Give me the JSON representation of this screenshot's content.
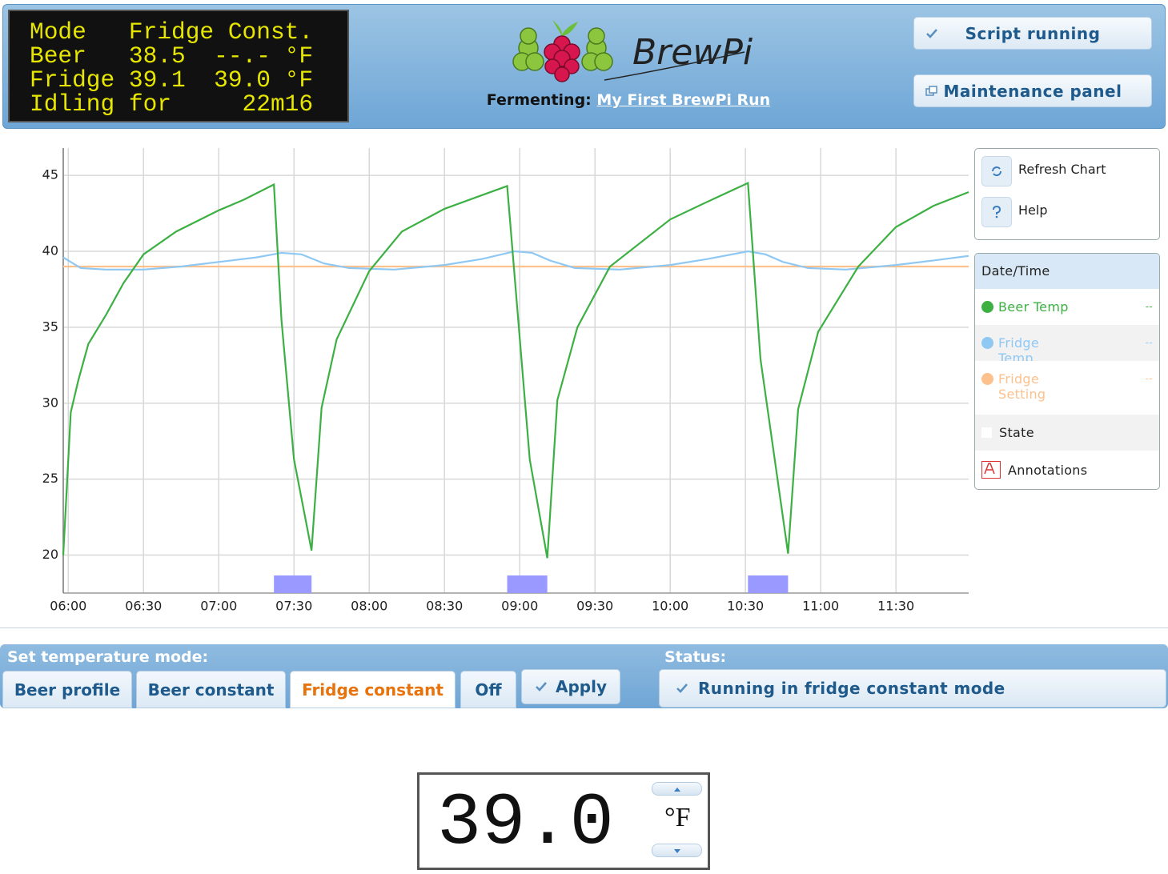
{
  "header": {
    "lcd": [
      "Mode   Fridge Const.",
      "Beer   38.5  --.- °F",
      "Fridge 39.1  39.0 °F",
      "Idling for     22m16"
    ],
    "logo_text": "BrewPi",
    "fermenting_label": "Fermenting:",
    "fermenting_name": "My First BrewPi Run",
    "buttons": [
      "Script running",
      "Maintenance panel"
    ]
  },
  "chart_data": {
    "type": "line",
    "xlim": [
      "05:58",
      "11:59"
    ],
    "xticks": [
      "06:00",
      "06:30",
      "07:00",
      "07:30",
      "08:00",
      "08:30",
      "09:00",
      "09:30",
      "10:00",
      "10:30",
      "11:00",
      "11:30"
    ],
    "ylim": [
      17.5,
      46.8
    ],
    "yticks": [
      20,
      25,
      30,
      35,
      40,
      45
    ],
    "grid": true,
    "series": [
      {
        "name": "Beer Temp",
        "color": "#3cb043",
        "current": "--",
        "x": [
          "05:58",
          "06:01",
          "06:04",
          "06:08",
          "06:15",
          "06:22",
          "06:30",
          "06:43",
          "07:00",
          "07:10",
          "07:22",
          "07:25",
          "07:30",
          "07:37",
          "07:41",
          "07:47",
          "08:00",
          "08:13",
          "08:30",
          "08:45",
          "08:55",
          "09:04",
          "09:11",
          "09:15",
          "09:23",
          "09:36",
          "10:00",
          "10:14",
          "10:31",
          "10:36",
          "10:47",
          "10:51",
          "10:59",
          "11:15",
          "11:30",
          "11:45",
          "11:59"
        ],
        "values": [
          20.0,
          29.4,
          31.5,
          33.9,
          35.8,
          37.9,
          39.8,
          41.3,
          42.7,
          43.4,
          44.4,
          35.5,
          26.3,
          20.3,
          29.7,
          34.2,
          38.7,
          41.3,
          42.8,
          43.7,
          44.3,
          26.3,
          19.8,
          30.2,
          35.0,
          39.0,
          42.1,
          43.2,
          44.5,
          32.9,
          20.1,
          29.6,
          34.7,
          39.0,
          41.6,
          43.0,
          43.9
        ]
      },
      {
        "name": "Fridge Temp",
        "color": "#8ec8f3",
        "current": "--",
        "x": [
          "05:58",
          "06:05",
          "06:15",
          "06:30",
          "06:45",
          "07:00",
          "07:15",
          "07:25",
          "07:33",
          "07:42",
          "07:52",
          "08:10",
          "08:30",
          "08:45",
          "08:58",
          "09:05",
          "09:12",
          "09:22",
          "09:40",
          "10:00",
          "10:15",
          "10:31",
          "10:38",
          "10:45",
          "10:55",
          "11:10",
          "11:30",
          "11:45",
          "11:59"
        ],
        "values": [
          39.6,
          38.9,
          38.8,
          38.8,
          39.0,
          39.3,
          39.6,
          39.9,
          39.8,
          39.2,
          38.9,
          38.8,
          39.1,
          39.5,
          40.0,
          39.9,
          39.4,
          38.9,
          38.8,
          39.1,
          39.5,
          40.0,
          39.8,
          39.3,
          38.9,
          38.8,
          39.1,
          39.4,
          39.7
        ]
      },
      {
        "name": "Fridge Setting",
        "color": "#fdc18d",
        "current": "--",
        "x": [
          "05:58",
          "11:59"
        ],
        "values": [
          39.0,
          39.0
        ]
      }
    ],
    "state": {
      "name": "State",
      "color": "#9999ff",
      "periods": [
        {
          "start": "07:22",
          "end": "07:37"
        },
        {
          "start": "08:55",
          "end": "09:11"
        },
        {
          "start": "10:31",
          "end": "10:47"
        }
      ]
    },
    "legend_header": "Date/Time",
    "annotations": "Annotations",
    "tools": [
      "Refresh Chart",
      "Help"
    ]
  },
  "controls": {
    "mode_label": "Set temperature mode:",
    "tabs": [
      "Beer profile",
      "Beer constant",
      "Fridge constant",
      "Off"
    ],
    "active_tab": 2,
    "apply": "Apply",
    "status_label": "Status:",
    "status": "Running in fridge constant mode",
    "setpoint": "39.0",
    "unit": "°F"
  }
}
